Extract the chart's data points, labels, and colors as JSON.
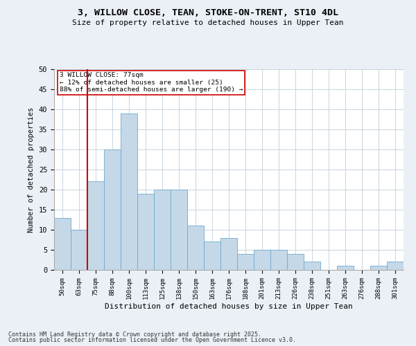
{
  "title1": "3, WILLOW CLOSE, TEAN, STOKE-ON-TRENT, ST10 4DL",
  "title2": "Size of property relative to detached houses in Upper Tean",
  "xlabel": "Distribution of detached houses by size in Upper Tean",
  "ylabel": "Number of detached properties",
  "categories": [
    "50sqm",
    "63sqm",
    "75sqm",
    "88sqm",
    "100sqm",
    "113sqm",
    "125sqm",
    "138sqm",
    "150sqm",
    "163sqm",
    "176sqm",
    "188sqm",
    "201sqm",
    "213sqm",
    "226sqm",
    "238sqm",
    "251sqm",
    "263sqm",
    "276sqm",
    "288sqm",
    "301sqm"
  ],
  "values": [
    13,
    10,
    22,
    30,
    39,
    19,
    20,
    20,
    11,
    7,
    8,
    4,
    5,
    5,
    4,
    2,
    0,
    1,
    0,
    1,
    2
  ],
  "bar_color": "#c5d8e8",
  "bar_edge_color": "#6fa8cc",
  "vline_x": 1.5,
  "vline_color": "#cc0000",
  "annotation_title": "3 WILLOW CLOSE: 77sqm",
  "annotation_line1": "← 12% of detached houses are smaller (25)",
  "annotation_line2": "88% of semi-detached houses are larger (190) →",
  "annotation_box_color": "#ffffff",
  "annotation_box_edge": "#cc0000",
  "ylim": [
    0,
    50
  ],
  "yticks": [
    0,
    5,
    10,
    15,
    20,
    25,
    30,
    35,
    40,
    45,
    50
  ],
  "footnote1": "Contains HM Land Registry data © Crown copyright and database right 2025.",
  "footnote2": "Contains public sector information licensed under the Open Government Licence v3.0.",
  "bg_color": "#eaf0f6",
  "plot_bg_color": "#ffffff",
  "grid_color": "#c8d4e0"
}
